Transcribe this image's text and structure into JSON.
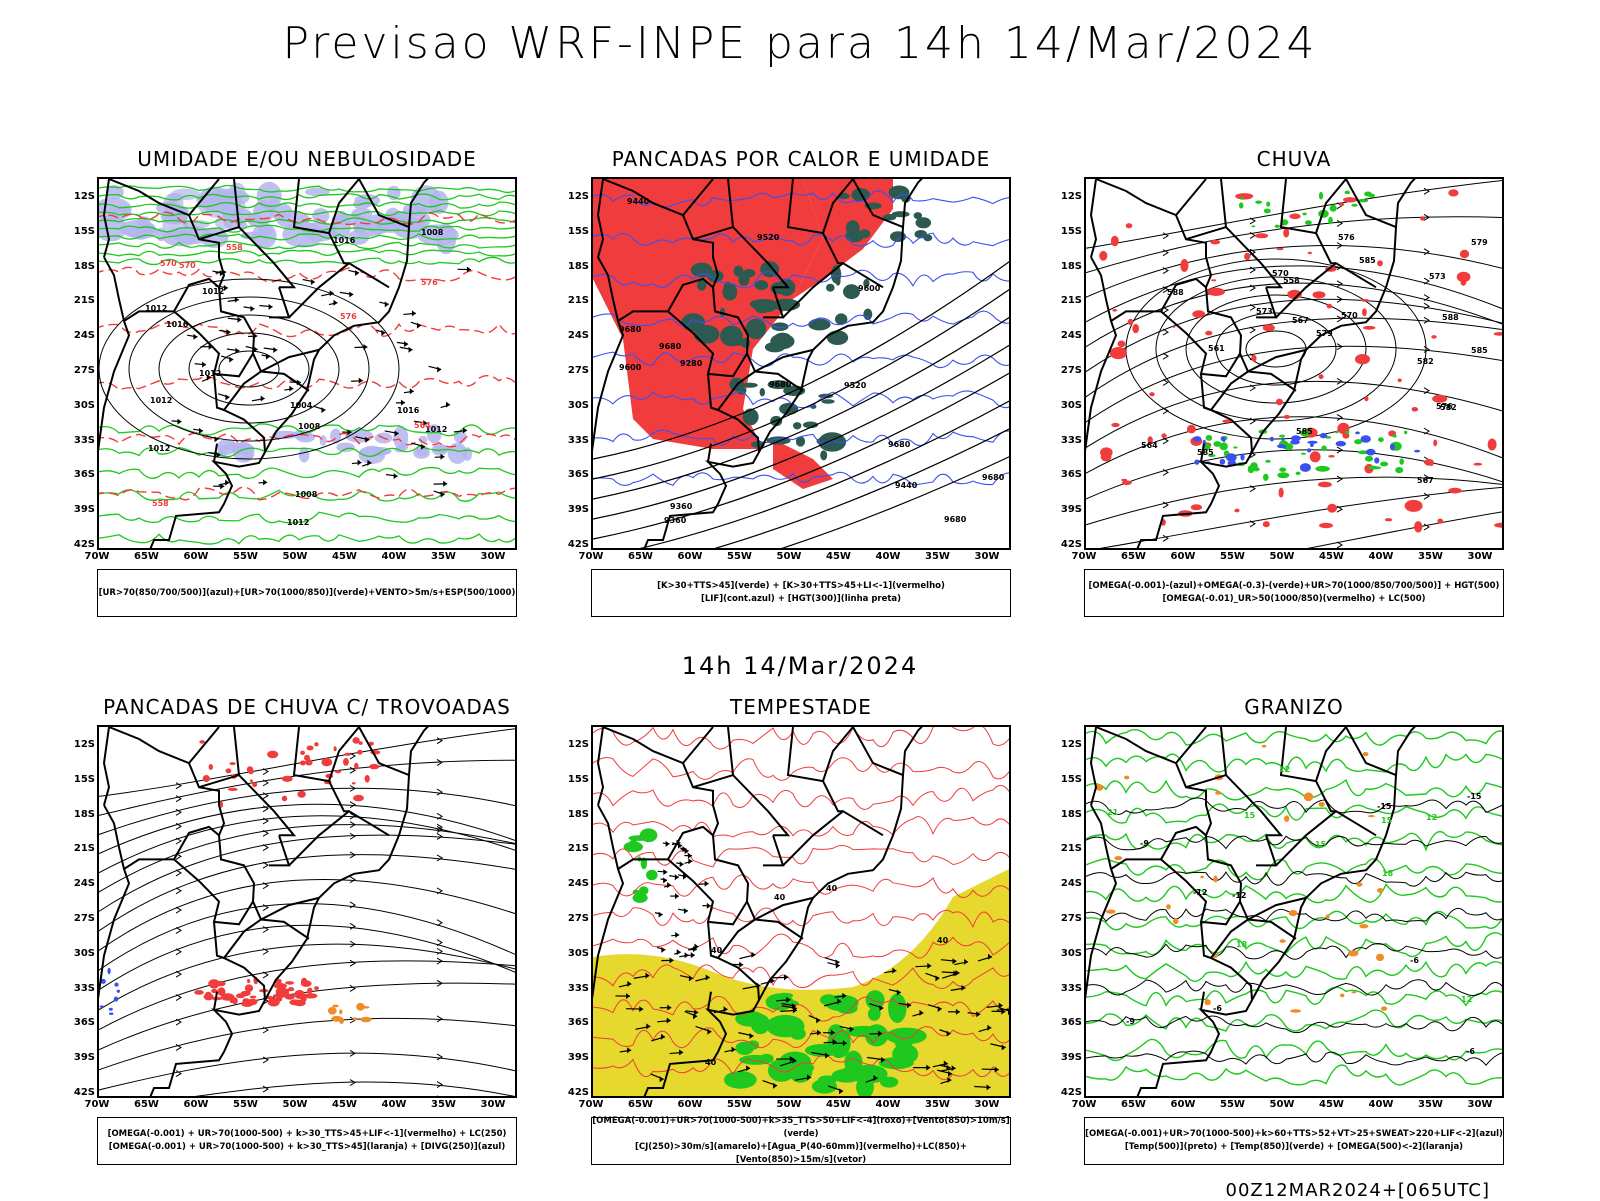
{
  "title": "Previsao WRF-INPE  para 14h 14/Mar/2024",
  "subtitle": "14h 14/Mar/2024",
  "footer": "00Z12MAR2024+[065UTC]",
  "lat_labels": [
    "12S",
    "15S",
    "18S",
    "21S",
    "24S",
    "27S",
    "30S",
    "33S",
    "36S",
    "39S",
    "42S"
  ],
  "lon_labels": [
    "70W",
    "65W",
    "60W",
    "55W",
    "50W",
    "45W",
    "40W",
    "35W",
    "30W"
  ],
  "colors": {
    "red": "#f03c3c",
    "green": "#1ec81e",
    "blue": "#3c50f0",
    "lavender": "#b4b4f0",
    "teal": "#2d5a50",
    "yellow": "#e6d82c",
    "orange": "#f08c28"
  },
  "panels": [
    {
      "id": "umidade",
      "title": "UMIDADE E/OU NEBULOSIDADE",
      "legend": [
        "[UR>70(850/700/500)](azul)+[UR>70(1000/850)](verde)+VENTO>5m/s+ESP(500/1000)"
      ],
      "contour_labels": [
        "1012",
        "1012",
        "1012",
        "1012",
        "1012",
        "1008",
        "1008",
        "1004",
        "1016",
        "1008",
        "1016",
        "1012",
        "1012",
        "1016",
        "576",
        "576",
        "570",
        "570",
        "564",
        "558",
        "558"
      ]
    },
    {
      "id": "pancadas-calor",
      "title": "PANCADAS POR CALOR E UMIDADE",
      "legend": [
        "[K>30+TTS>45](verde) + [K>30+TTS>45+LI<-1](vermelho)",
        "[LIF](cont.azul) + [HGT(300)](linha preta)"
      ],
      "contour_labels": [
        "9680",
        "9680",
        "9680",
        "9680",
        "9600",
        "9520",
        "9440",
        "9360",
        "9280",
        "9600",
        "9520",
        "9440",
        "9360",
        "9680",
        "9680"
      ]
    },
    {
      "id": "chuva",
      "title": "CHUVA",
      "legend": [
        "[OMEGA(-0.001)-(azul)+OMEGA(-0.3)-(verde)+UR>70(1000/850/700/500)] + HGT(500)",
        "[OMEGA(-0.01)_UR>50(1000/850)(vermelho) + LC(500)"
      ],
      "contour_labels": [
        "588",
        "585",
        "585",
        "585",
        "582",
        "579",
        "576",
        "573",
        "570",
        "567",
        "564",
        "561",
        "558",
        "588",
        "585",
        "582",
        "579",
        "576",
        "573",
        "570",
        "567"
      ]
    },
    {
      "id": "trovoadas",
      "title": "PANCADAS DE CHUVA C/ TROVOADAS",
      "legend": [
        "[OMEGA(-0.001) + UR>70(1000-500) + k>30_TTS>45+LIF<-1](vermelho) + LC(250)",
        "[OMEGA(-0.001) + UR>70(1000-500) + k>30_TTS>45](laranja) + [DIVG(250)](azul)"
      ],
      "contour_labels": []
    },
    {
      "id": "tempestade",
      "title": "TEMPESTADE",
      "legend": [
        "[OMEGA(-0.001)+UR>70(1000-500)+k>35_TTS>50+LIF<-4](roxo)+[Vento(850)>10m/s](verde)",
        "[CJ(250)>30m/s](amarelo)+[Agua_P(40-60mm)](vermelho)+LC(850)+[Vento(850)>15m/s](vetor)"
      ],
      "contour_labels": [
        "40",
        "40",
        "40",
        "40",
        "40"
      ]
    },
    {
      "id": "granizo",
      "title": "GRANIZO",
      "legend": [
        "[OMEGA(-0.001)+UR>70(1000-500)+k>60+TTS>52+VT>25+SWEAT>220+LIF<-2](azul)",
        "[Temp(500)](preto) + [Temp(850)](verde) + [OMEGA(500)<-2](laranja)"
      ],
      "contour_labels": [
        "-6",
        "-9",
        "-6",
        "-9",
        "-12",
        "-15",
        "-12",
        "-15",
        "-6",
        "18",
        "15",
        "12",
        "12",
        "15",
        "18",
        "21",
        "15",
        "12"
      ]
    }
  ]
}
